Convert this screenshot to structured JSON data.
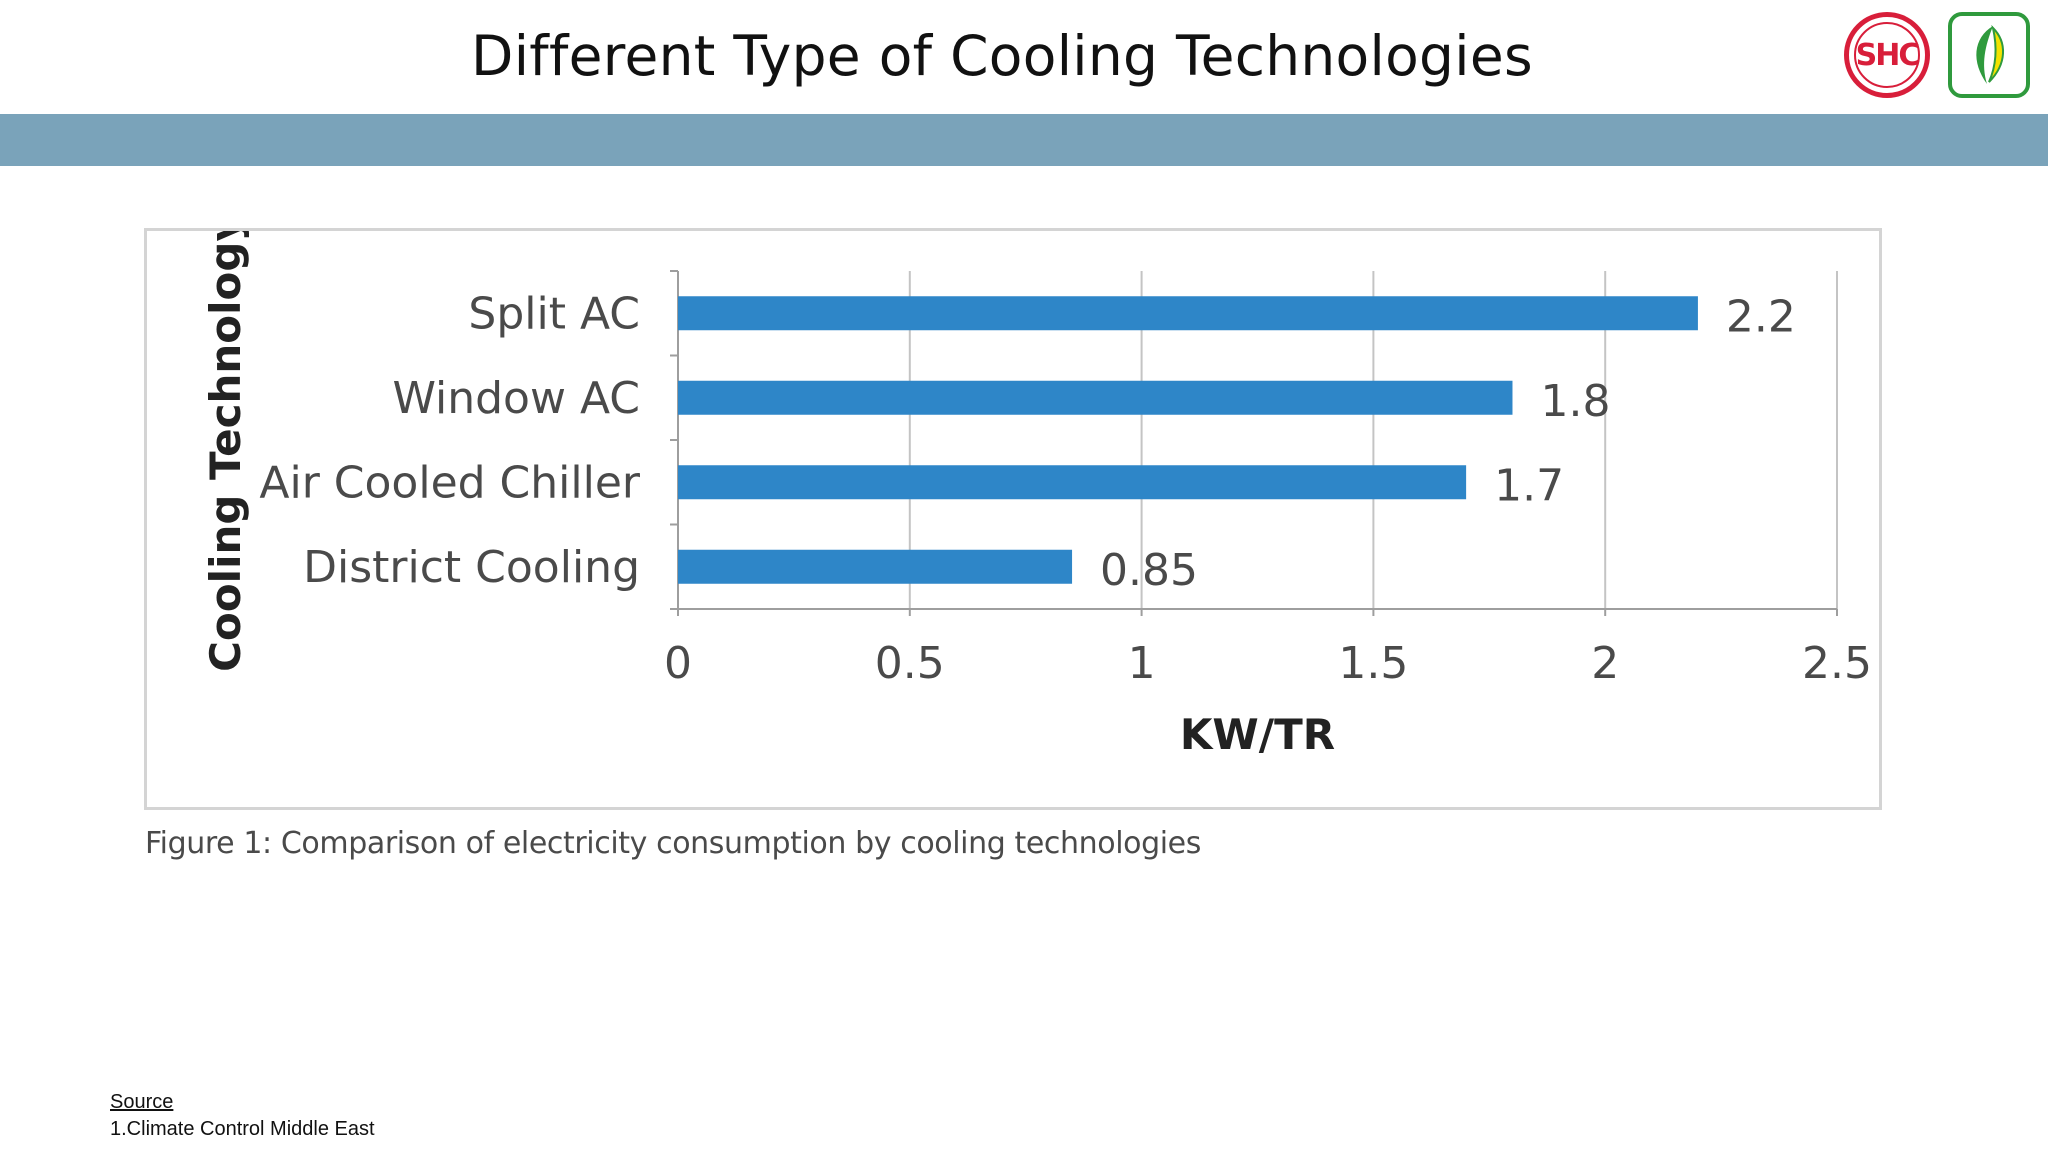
{
  "slide": {
    "title": "Different Type of Cooling Technologies",
    "caption": "Figure 1: Comparison of electricity consumption by cooling technologies",
    "source_heading": "Source",
    "source_item": "1.Climate Control Middle East"
  },
  "logos": {
    "shc_text": "SHC"
  },
  "colors": {
    "band": "#7aa3ba",
    "bar": "#2e86c8",
    "shc_red": "#d81e3a",
    "leaf_green": "#2f9a3d"
  },
  "chart_data": {
    "type": "bar",
    "orientation": "horizontal",
    "title": "",
    "categories": [
      "Split AC",
      "Window AC",
      "Air Cooled Chiller",
      "District Cooling"
    ],
    "values": [
      2.2,
      1.8,
      1.7,
      0.85
    ],
    "value_labels": [
      "2.2",
      "1.8",
      "1.7",
      "0.85"
    ],
    "xlabel": "KW/TR",
    "ylabel": "Cooling Technology",
    "xlim": [
      0,
      2.5
    ],
    "x_ticks": [
      0,
      0.5,
      1,
      1.5,
      2,
      2.5
    ],
    "x_tick_labels": [
      "0",
      "0.5",
      "1",
      "1.5",
      "2",
      "2.5"
    ],
    "grid": true
  }
}
